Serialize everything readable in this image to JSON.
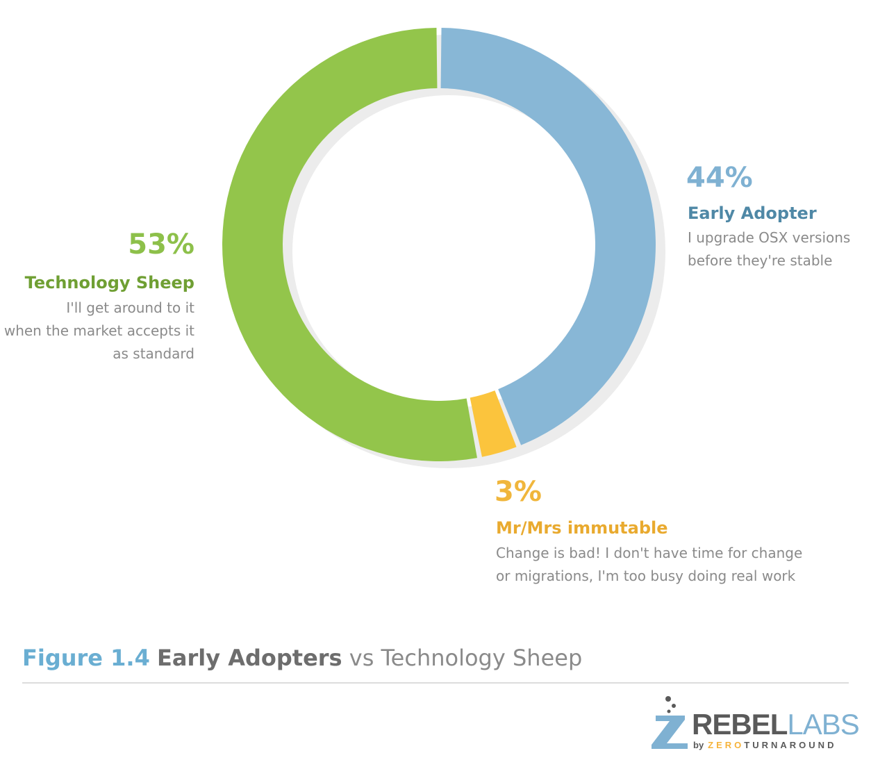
{
  "chart_data": {
    "type": "pie",
    "style": "donut",
    "categories": [
      "Early Adopter",
      "Mr/Mrs immutable",
      "Technology Sheep"
    ],
    "values": [
      44,
      3,
      53
    ],
    "value_labels": [
      "44%",
      "3%",
      "53%"
    ],
    "descriptions": [
      [
        "I upgrade OSX versions",
        "before they're stable"
      ],
      [
        "Change is bad! I don't have time for change",
        "or migrations, I'm too busy doing real work"
      ],
      [
        "I'll get around to it",
        "when the market accepts it",
        "as standard"
      ]
    ],
    "colors": [
      "#88b7d6",
      "#fbc43d",
      "#93c54b"
    ],
    "label_colors": [
      "#7fb1d2",
      "#f0b63c",
      "#8dc04a"
    ],
    "category_label_colors": [
      "#4f88a6",
      "#e9aa2f",
      "#6f9f33"
    ],
    "shadow_color": "#ececec",
    "start": "top, clockwise"
  },
  "caption": {
    "figure": "Figure 1.4",
    "bold": "Early Adopters",
    "rest": "vs Technology Sheep"
  },
  "logo": {
    "rebel": "REBEL",
    "labs": "LABS",
    "by": "by",
    "zero": "ZERO",
    "turnaround": "TURNAROUND",
    "icon": "flask-icon"
  }
}
